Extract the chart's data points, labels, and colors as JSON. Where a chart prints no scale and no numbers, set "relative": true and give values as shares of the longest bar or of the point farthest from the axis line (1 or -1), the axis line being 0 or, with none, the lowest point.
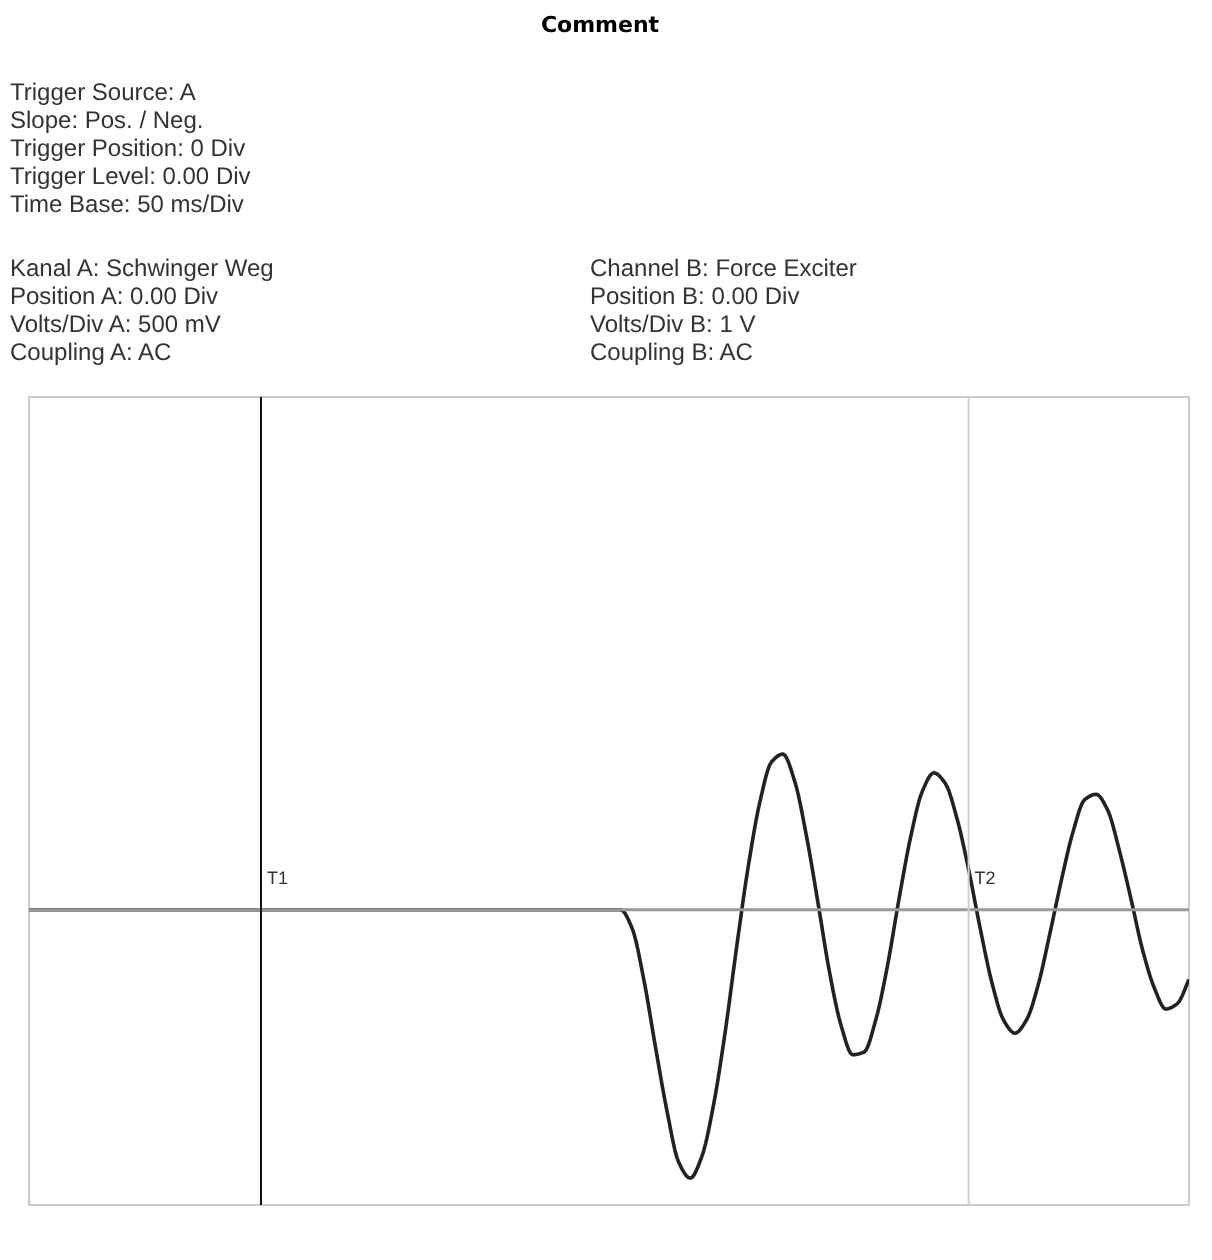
{
  "chart_data": {
    "type": "line",
    "title": "Comment",
    "relative": true,
    "annotations": [
      "Trigger Source: A",
      "Slope: Pos. / Neg.",
      "Trigger Position: 0 Div",
      "Trigger Level: 0.00 Div",
      "Time Base: 50 ms/Div",
      "Kanal A: Schwinger Weg",
      "Position A: 0.00 Div",
      "Volts/Div A: 500 mV",
      "Coupling A: AC",
      "Channel B: Force Exciter",
      "Position B: 0.00 Div",
      "Volts/Div B: 1 V",
      "Coupling B: AC",
      "T1",
      "T2"
    ],
    "categories": [
      null,
      null,
      null,
      null,
      null,
      null,
      null,
      null,
      null,
      null,
      null,
      null,
      null,
      null,
      null,
      null,
      null,
      null,
      null,
      null,
      null,
      null,
      null,
      null,
      null,
      null,
      null,
      null,
      null,
      null,
      null,
      null,
      null,
      null,
      null,
      null,
      null,
      null,
      null,
      null,
      null,
      null,
      null,
      null,
      null,
      null,
      null,
      null,
      null,
      null,
      null,
      null,
      null,
      null,
      null,
      null,
      null,
      null,
      null,
      null,
      null,
      null,
      null,
      null,
      null,
      null,
      null,
      null,
      null,
      null,
      null,
      null,
      null,
      null,
      null,
      null,
      null,
      null,
      null,
      null,
      null,
      null,
      null,
      null,
      null,
      null,
      null,
      null,
      null,
      null,
      null,
      null,
      null,
      null,
      null,
      null,
      null,
      null,
      null,
      null,
      null
    ],
    "marker": "none",
    "line_style": "solid",
    "series": [
      {
        "color": "#222222",
        "values": [
          0,
          0,
          0,
          0,
          0,
          0,
          0,
          0,
          0,
          0,
          0,
          0,
          0,
          0,
          0,
          0,
          0,
          0,
          0,
          0,
          0,
          0,
          0,
          0,
          0,
          0,
          0,
          0,
          0,
          0,
          0,
          0,
          0,
          0,
          0,
          0,
          0,
          0,
          0,
          0,
          0,
          0,
          0,
          0,
          0,
          0,
          0,
          0,
          0,
          0,
          0,
          0,
          -0.07,
          -0.26,
          -0.51,
          -0.75,
          -0.94,
          -1,
          -0.92,
          -0.73,
          -0.46,
          -0.14,
          0.16,
          0.4,
          0.55,
          0.58,
          0.48,
          0.28,
          0.03,
          -0.23,
          -0.43,
          -0.54,
          -0.53,
          -0.41,
          -0.21,
          0.04,
          0.27,
          0.44,
          0.51,
          0.47,
          0.34,
          0.15,
          -0.07,
          -0.27,
          -0.41,
          -0.46,
          -0.41,
          -0.28,
          -0.09,
          0.11,
          0.29,
          0.41,
          0.43,
          0.37,
          0.22,
          0.04,
          -0.15,
          -0.29,
          -0.37,
          -0.35,
          -0.26
        ]
      }
    ]
  }
}
